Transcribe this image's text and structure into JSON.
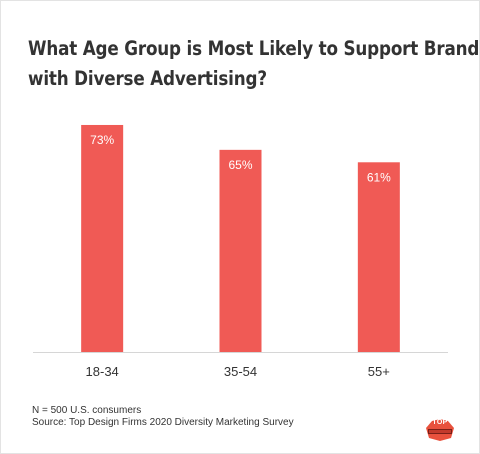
{
  "chart_data": {
    "type": "bar",
    "title": "What Age Group is Most Likely to Support Brands with Diverse Advertising?",
    "title_lines": [
      "What Age Group is Most Likely to Support Brands",
      "with Diverse Advertising?"
    ],
    "categories": [
      "18-34",
      "35-54",
      "55+"
    ],
    "values": [
      73,
      65,
      61
    ],
    "value_labels": [
      "73%",
      "65%",
      "61%"
    ],
    "ylim": [
      0,
      100
    ],
    "grid": false,
    "legend": "none",
    "bar_color": "#f05a55"
  },
  "footnote": {
    "sample": "N = 500 U.S. consumers",
    "source": "Source: Top Design Firms 2020 Diversity Marketing Survey"
  },
  "logo": {
    "text": "TOP",
    "icon": "top-design-firms-logo",
    "color": "#e8513d"
  }
}
